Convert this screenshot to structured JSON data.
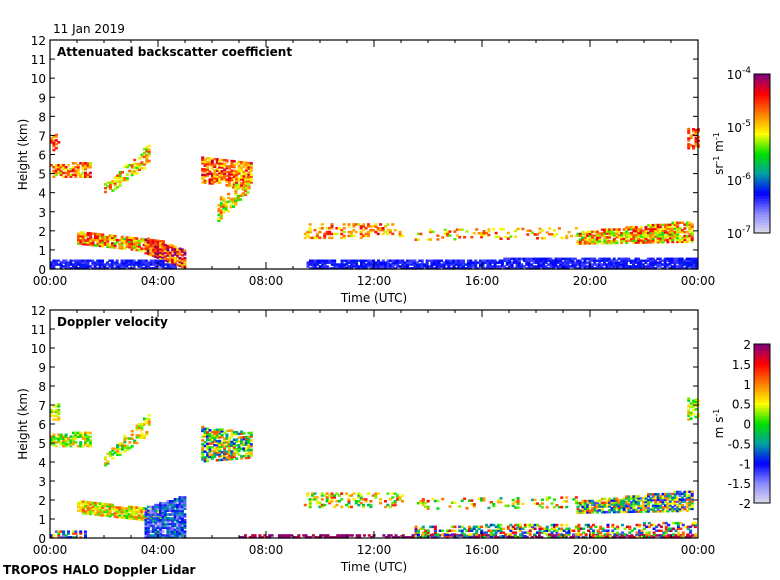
{
  "date_label": "11 Jan 2019",
  "footer": "TROPOS HALO Doppler Lidar",
  "chart_data": [
    {
      "type": "heatmap",
      "title": "Attenuated backscatter coefficient",
      "xlabel": "Time (UTC)",
      "ylabel": "Height (km)",
      "xlim": [
        "00:00",
        "24:00"
      ],
      "ylim": [
        0,
        12
      ],
      "x_ticks": [
        "00:00",
        "04:00",
        "08:00",
        "12:00",
        "16:00",
        "20:00",
        "00:00"
      ],
      "y_ticks": [
        "0",
        "1",
        "2",
        "3",
        "4",
        "5",
        "6",
        "7",
        "8",
        "9",
        "10",
        "11",
        "12"
      ],
      "colorbar": {
        "scale": "log",
        "range": [
          1e-07,
          0.0001
        ],
        "unit_html": "sr<tspan baseline-shift='super' font-size='8'>-1</tspan> m<tspan baseline-shift='super' font-size='8'>-1</tspan>",
        "unit": "sr-1 m-1",
        "tick_values": [
          -7,
          -6,
          -5,
          -4
        ],
        "tick_labels": [
          "10-7",
          "10-6",
          "10-5",
          "10-4"
        ]
      },
      "colormap": [
        "#e0dcea",
        "#8a8aff",
        "#0000ff",
        "#00a0a0",
        "#00e000",
        "#ffff00",
        "#ff8000",
        "#ff0000",
        "#800080"
      ],
      "features": [
        {
          "t": [
            0.0,
            4.6
          ],
          "base": [
            0.0,
            0.0
          ],
          "top": [
            0.4,
            0.5
          ],
          "value": -6.3,
          "spread": 0.15,
          "fill": 0.8
        },
        {
          "t": [
            9.5,
            23.9
          ],
          "base": [
            0.0,
            0.0
          ],
          "top": [
            0.4,
            0.6
          ],
          "value": -6.3,
          "spread": 0.15,
          "fill": 0.85
        },
        {
          "t": [
            0.0,
            1.5
          ],
          "base": [
            4.8,
            4.8
          ],
          "top": [
            5.4,
            5.6
          ],
          "value": -4.8,
          "spread": 0.5,
          "fill": 0.7
        },
        {
          "t": [
            0.0,
            0.3
          ],
          "base": [
            6.2,
            6.2
          ],
          "top": [
            7.0,
            7.0
          ],
          "value": -4.6,
          "spread": 0.3,
          "fill": 0.5
        },
        {
          "t": [
            1.0,
            4.2
          ],
          "base": [
            1.3,
            0.8
          ],
          "top": [
            2.0,
            1.5
          ],
          "value": -4.9,
          "spread": 0.6,
          "fill": 0.85
        },
        {
          "t": [
            3.5,
            5.0
          ],
          "base": [
            0.8,
            0.0
          ],
          "top": [
            1.6,
            1.0
          ],
          "value": -4.5,
          "spread": 0.6,
          "fill": 0.85
        },
        {
          "t": [
            2.0,
            3.7
          ],
          "base": [
            3.8,
            5.5
          ],
          "top": [
            4.4,
            6.6
          ],
          "value": -5.0,
          "spread": 0.5,
          "fill": 0.5
        },
        {
          "t": [
            5.6,
            7.4
          ],
          "base": [
            4.5,
            4.2
          ],
          "top": [
            5.8,
            5.5
          ],
          "value": -4.7,
          "spread": 0.5,
          "fill": 0.7
        },
        {
          "t": [
            6.2,
            7.3
          ],
          "base": [
            2.5,
            4.0
          ],
          "top": [
            3.8,
            4.8
          ],
          "value": -5.0,
          "spread": 0.5,
          "fill": 0.6
        },
        {
          "t": [
            9.4,
            13.0
          ],
          "base": [
            1.6,
            1.6
          ],
          "top": [
            2.4,
            2.4
          ],
          "value": -4.8,
          "spread": 0.5,
          "fill": 0.3
        },
        {
          "t": [
            13.5,
            19.5
          ],
          "base": [
            1.5,
            1.6
          ],
          "top": [
            2.1,
            2.1
          ],
          "value": -4.9,
          "spread": 0.5,
          "fill": 0.2
        },
        {
          "t": [
            19.5,
            23.8
          ],
          "base": [
            1.3,
            1.4
          ],
          "top": [
            1.9,
            2.5
          ],
          "value": -4.9,
          "spread": 0.6,
          "fill": 0.8
        },
        {
          "t": [
            23.6,
            24.0
          ],
          "base": [
            6.2,
            6.4
          ],
          "top": [
            7.3,
            7.3
          ],
          "value": -4.6,
          "spread": 0.3,
          "fill": 0.6
        }
      ]
    },
    {
      "type": "heatmap",
      "title": "Doppler velocity",
      "xlabel": "Time (UTC)",
      "ylabel": "Height (km)",
      "xlim": [
        "00:00",
        "24:00"
      ],
      "ylim": [
        0,
        12
      ],
      "x_ticks": [
        "00:00",
        "04:00",
        "08:00",
        "12:00",
        "16:00",
        "20:00",
        "00:00"
      ],
      "y_ticks": [
        "0",
        "1",
        "2",
        "3",
        "4",
        "5",
        "6",
        "7",
        "8",
        "9",
        "10",
        "11",
        "12"
      ],
      "colorbar": {
        "scale": "linear",
        "range": [
          -2,
          2
        ],
        "unit": "m s-1",
        "tick_values": [
          -2,
          -1.5,
          -1,
          -0.5,
          0,
          0.5,
          1,
          1.5,
          2
        ],
        "tick_labels": [
          "-2",
          "-1.5",
          "-1",
          "-0.5",
          "0",
          "0.5",
          "1",
          "1.5",
          "2"
        ]
      },
      "colormap": [
        "#e0dcea",
        "#8a8aff",
        "#0000ff",
        "#00a0a0",
        "#00e000",
        "#ffff00",
        "#ff8000",
        "#ff0000",
        "#800080"
      ],
      "features": [
        {
          "t": [
            0.0,
            1.3
          ],
          "base": [
            0.0,
            0.0
          ],
          "top": [
            0.4,
            0.4
          ],
          "value": 0.0,
          "spread": 1.5,
          "fill": 0.6
        },
        {
          "t": [
            7.0,
            23.9
          ],
          "base": [
            0.0,
            0.0
          ],
          "top": [
            0.15,
            0.2
          ],
          "value": 1.9,
          "spread": 0.2,
          "fill": 0.6
        },
        {
          "t": [
            13.5,
            23.9
          ],
          "base": [
            0.05,
            0.05
          ],
          "top": [
            0.6,
            0.8
          ],
          "value": 0.3,
          "spread": 1.6,
          "fill": 0.45
        },
        {
          "t": [
            0.0,
            1.5
          ],
          "base": [
            4.8,
            4.8
          ],
          "top": [
            5.4,
            5.6
          ],
          "value": 0.4,
          "spread": 0.6,
          "fill": 0.7
        },
        {
          "t": [
            0.0,
            0.3
          ],
          "base": [
            6.2,
            6.2
          ],
          "top": [
            7.0,
            7.0
          ],
          "value": 0.3,
          "spread": 0.5,
          "fill": 0.5
        },
        {
          "t": [
            1.0,
            4.2
          ],
          "base": [
            1.3,
            0.8
          ],
          "top": [
            2.0,
            1.5
          ],
          "value": 0.6,
          "spread": 0.6,
          "fill": 0.85
        },
        {
          "t": [
            3.5,
            5.0
          ],
          "base": [
            0.0,
            0.0
          ],
          "top": [
            1.6,
            2.2
          ],
          "value": -1.0,
          "spread": 0.6,
          "fill": 0.85
        },
        {
          "t": [
            2.0,
            3.7
          ],
          "base": [
            3.8,
            5.5
          ],
          "top": [
            4.4,
            6.6
          ],
          "value": 0.4,
          "spread": 0.7,
          "fill": 0.5
        },
        {
          "t": [
            5.6,
            7.4
          ],
          "base": [
            4.0,
            4.2
          ],
          "top": [
            5.8,
            5.5
          ],
          "value": 0.2,
          "spread": 1.2,
          "fill": 0.7
        },
        {
          "t": [
            9.4,
            13.0
          ],
          "base": [
            1.6,
            1.6
          ],
          "top": [
            2.4,
            2.4
          ],
          "value": 0.5,
          "spread": 1.0,
          "fill": 0.3
        },
        {
          "t": [
            13.5,
            19.5
          ],
          "base": [
            1.5,
            1.6
          ],
          "top": [
            2.1,
            2.1
          ],
          "value": 0.5,
          "spread": 1.0,
          "fill": 0.2
        },
        {
          "t": [
            19.5,
            23.8
          ],
          "base": [
            1.3,
            1.4
          ],
          "top": [
            1.9,
            2.5
          ],
          "value": 0.0,
          "spread": 1.4,
          "fill": 0.8
        },
        {
          "t": [
            23.6,
            24.0
          ],
          "base": [
            6.2,
            6.4
          ],
          "top": [
            7.3,
            7.3
          ],
          "value": 0.4,
          "spread": 0.5,
          "fill": 0.6
        }
      ]
    }
  ]
}
